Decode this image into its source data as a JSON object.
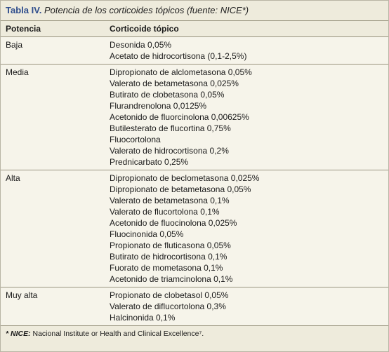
{
  "table": {
    "label": "Tabla IV.",
    "title": "Potencia de los corticoides tópicos (fuente: NICE*)",
    "headers": [
      "Potencia",
      "Corticoide tópico"
    ],
    "groups": [
      {
        "potency": "Baja",
        "items": [
          "Desonida 0,05%",
          "Acetato de hidrocortisona (0,1-2,5%)"
        ]
      },
      {
        "potency": "Media",
        "items": [
          "Dipropionato de alclometasona 0,05%",
          "Valerato de betametasona 0,025%",
          "Butirato de clobetasona 0,05%",
          "Flurandrenolona 0,0125%",
          "Acetonido de fluorcinolona 0,00625%",
          "Butilesterato de flucortina 0,75%",
          "Fluocortolona",
          "Valerato de hidrocortisona 0,2%",
          "Prednicarbato 0,25%"
        ]
      },
      {
        "potency": "Alta",
        "items": [
          "Dipropionato de beclometasona 0,025%",
          "Dipropionato de betametasona 0,05%",
          "Valerato de betametasona 0,1%",
          "Valerato de flucortolona 0,1%",
          "Acetonido de fluocinolona 0,025%",
          "Fluocinonida 0,05%",
          "Propionato de fluticasona 0,05%",
          "Butirato de hidrocortisona 0,1%",
          "Fuorato de mometasona 0,1%",
          "Acetonido de triamcinolona 0,1%"
        ]
      },
      {
        "potency": "Muy alta",
        "items": [
          "Propionato de clobetasol 0,05%",
          "Valerato de diflucortolona 0,3%",
          "Halcinonida 0,1%"
        ]
      }
    ],
    "footnote": {
      "abbr": "* NICE:",
      "text": " Nacional Institute or Health and Clinical Excellence⁷."
    }
  }
}
